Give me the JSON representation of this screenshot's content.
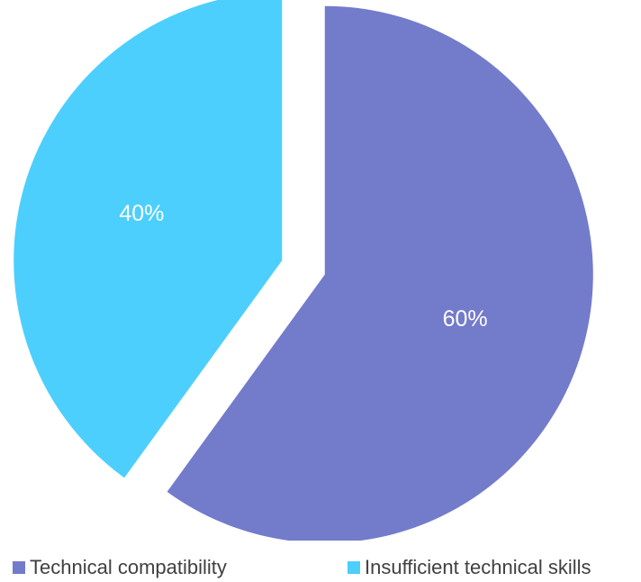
{
  "chart_data": {
    "type": "pie",
    "categories": [
      "Technical compatibility",
      "Insufficient technical skills"
    ],
    "values": [
      60,
      40
    ],
    "data_labels": [
      "60%",
      "40%"
    ],
    "colors": [
      "#737BCB",
      "#4CCFFD"
    ],
    "exploded": true,
    "legend_position": "bottom",
    "label_color": "#FFFFFF",
    "legend_text_color": "#404040"
  }
}
